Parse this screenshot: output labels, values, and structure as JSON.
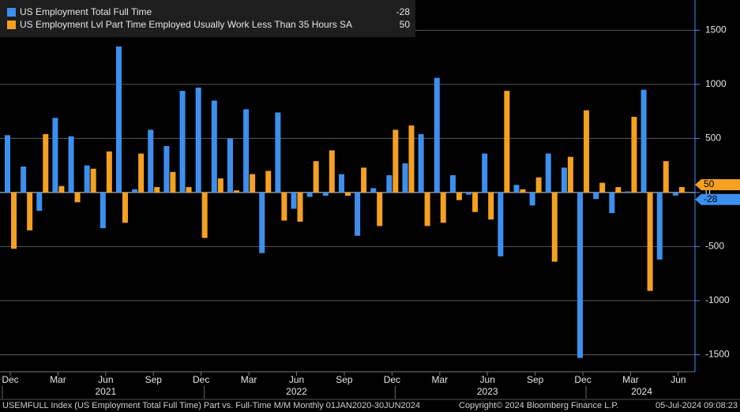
{
  "chart_data": {
    "type": "bar",
    "categories": [
      "Dec",
      null,
      null,
      "Mar",
      null,
      null,
      "Jun",
      null,
      null,
      "Sep",
      null,
      null,
      "Dec",
      null,
      null,
      "Mar",
      null,
      null,
      "Jun",
      null,
      null,
      "Sep",
      null,
      null,
      "Dec",
      null,
      null,
      "Mar",
      null,
      null,
      "Jun",
      null,
      null,
      "Sep",
      null,
      null,
      "Dec",
      null,
      null,
      "Mar",
      null,
      null,
      "Jun"
    ],
    "year_labels": [
      "2021",
      "2022",
      "2023",
      "2024"
    ],
    "series": [
      {
        "name": "US Employment Total Full Time",
        "color": "#3d8fef",
        "values": [
          530,
          240,
          -170,
          690,
          520,
          250,
          -330,
          1350,
          30,
          580,
          430,
          940,
          970,
          850,
          500,
          770,
          -560,
          740,
          -150,
          -40,
          -30,
          170,
          -400,
          40,
          160,
          270,
          540,
          1060,
          160,
          -20,
          360,
          -590,
          70,
          -120,
          360,
          230,
          -1530,
          -60,
          -190,
          10,
          950,
          -620,
          -28
        ]
      },
      {
        "name": "US Employment Lvl Part Time Employed Usually Work Less Than 35 Hours SA",
        "color": "#f5a020",
        "values": [
          -520,
          -350,
          540,
          60,
          -90,
          220,
          380,
          -280,
          360,
          50,
          190,
          50,
          -420,
          130,
          20,
          170,
          200,
          -260,
          -270,
          290,
          390,
          -30,
          230,
          -310,
          580,
          620,
          -310,
          -280,
          -70,
          -180,
          -250,
          940,
          30,
          140,
          -640,
          330,
          760,
          90,
          50,
          700,
          -910,
          290,
          50
        ]
      }
    ],
    "ylim": [
      -1650,
      1780
    ],
    "yticks": [
      -1500,
      -1000,
      -500,
      0,
      500,
      1000,
      1500
    ],
    "grid": true,
    "footer": {
      "source": "USEMFULL Index (US Employment Total Full Time) Part vs. Full-Time M/M  Monthly 01JAN2020-30JUN2024",
      "copyright": "Copyright© 2024 Bloomberg Finance L.P.",
      "timestamp": "05-Jul-2024 09:08:23"
    }
  }
}
